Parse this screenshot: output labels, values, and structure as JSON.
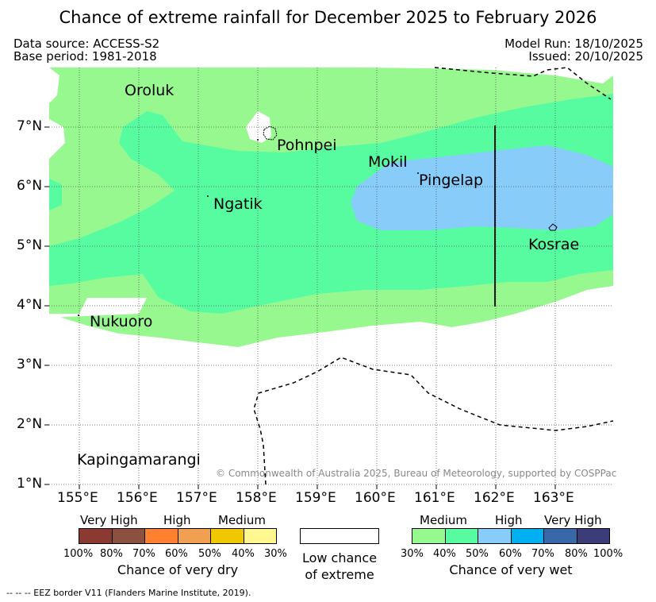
{
  "title": "Chance of extreme rainfall for December 2025 to February 2026",
  "meta": {
    "data_source": "Data source: ACCESS-S2",
    "base_period": "Base period: 1981-2018",
    "model_run": "Model Run: 18/10/2025",
    "issued": "Issued: 20/10/2025"
  },
  "axes": {
    "lon_labels": [
      "155°E",
      "156°E",
      "157°E",
      "158°E",
      "159°E",
      "160°E",
      "161°E",
      "162°E",
      "163°E"
    ],
    "lat_labels": [
      "7°N",
      "6°N",
      "5°N",
      "4°N",
      "3°N",
      "2°N",
      "1°N"
    ]
  },
  "places": {
    "oroluk": "Oroluk",
    "pohnpei": "Pohnpei",
    "mokil": "Mokil",
    "pingelap": "Pingelap",
    "ngatik": "Ngatik",
    "kosrae": "Kosrae",
    "nukuoro": "Nukuoro",
    "kapingamarangi": "Kapingamarangi"
  },
  "copyright": "© Commonwealth of Australia 2025, Bureau of Meteorology, supported by COSPPac",
  "legend": {
    "dry": {
      "headers": [
        "Very High",
        "High",
        "Medium"
      ],
      "colors": [
        "#8b3a32",
        "#8b5040",
        "#ff8030",
        "#f0a050",
        "#f0c800",
        "#fff890"
      ],
      "pcts": [
        "100%",
        "80%",
        "70%",
        "60%",
        "50%",
        "40%",
        "30%"
      ],
      "caption": "Chance of very dry"
    },
    "low": {
      "line1": "Low chance",
      "line2": "of extreme"
    },
    "wet": {
      "headers": [
        "Medium",
        "High",
        "Very High"
      ],
      "colors": [
        "#98f890",
        "#58fca0",
        "#88ccfa",
        "#00b0f0",
        "#3868a8",
        "#3c3c78"
      ],
      "pcts": [
        "30%",
        "40%",
        "50%",
        "60%",
        "70%",
        "80%",
        "100%"
      ],
      "caption": "Chance of very wet"
    }
  },
  "eez_note": "--  --  -- EEZ border V11 (Flanders Marine Institute, 2019)."
}
